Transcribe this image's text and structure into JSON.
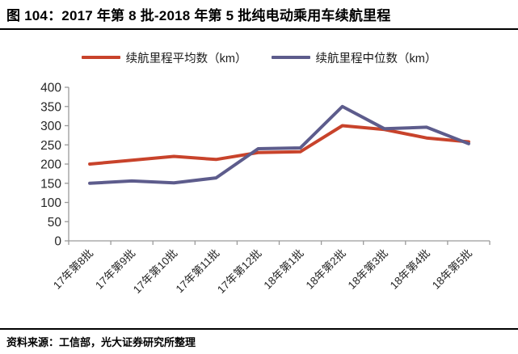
{
  "header": {
    "title": "图 104：2017 年第 8 批-2018 年第 5 批纯电动乘用车续航里程"
  },
  "legend": {
    "items": [
      {
        "label": "续航里程平均数（km）",
        "color": "#C8432B"
      },
      {
        "label": "续航里程中位数（km）",
        "color": "#5D5C8C"
      }
    ]
  },
  "footer": {
    "source_text": "资料来源：工信部，光大证券研究所整理"
  },
  "colors": {
    "series_average": "#C8432B",
    "series_median": "#5D5C8C",
    "axis": "#9a9a9a",
    "tick_text": "#262626",
    "divider": "#000000"
  },
  "chart_data": {
    "type": "line",
    "title": "图 104：2017 年第 8 批-2018 年第 5 批纯电动乘用车续航里程",
    "categories": [
      "17年第8批",
      "17年第9批",
      "17年第10批",
      "17年第11批",
      "17年第12批",
      "18年第1批",
      "18年第2批",
      "18年第3批",
      "18年第4批",
      "18年第5批"
    ],
    "series": [
      {
        "name": "续航里程平均数（km）",
        "color": "#C8432B",
        "values": [
          200,
          210,
          220,
          212,
          230,
          232,
          300,
          290,
          268,
          258
        ]
      },
      {
        "name": "续航里程中位数（km）",
        "color": "#5D5C8C",
        "values": [
          150,
          156,
          151,
          164,
          240,
          242,
          350,
          292,
          296,
          253
        ]
      }
    ],
    "xlabel": "",
    "ylabel": "",
    "ylim": [
      0,
      400
    ],
    "ytick_step": 50,
    "yticks": [
      0,
      50,
      100,
      150,
      200,
      250,
      300,
      350,
      400
    ],
    "grid": false,
    "legend_position": "top",
    "line_width": 4
  }
}
